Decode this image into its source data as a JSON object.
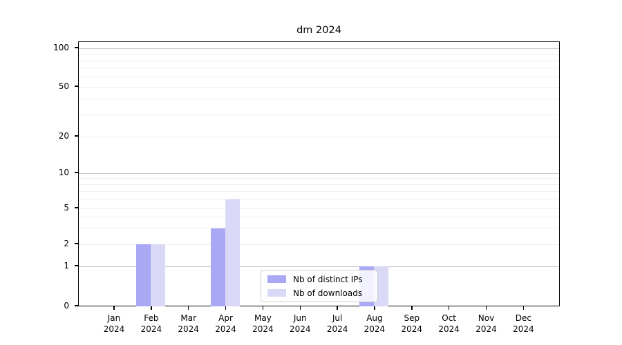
{
  "title": "dm 2024",
  "chart_data": {
    "type": "bar",
    "title": "dm 2024",
    "year_label": "2024",
    "categories": [
      "Jan",
      "Feb",
      "Mar",
      "Apr",
      "May",
      "Jun",
      "Jul",
      "Aug",
      "Sep",
      "Oct",
      "Nov",
      "Dec"
    ],
    "series": [
      {
        "name": "Nb of distinct IPs",
        "color": "#a8a8f5",
        "values": [
          0,
          2,
          0,
          3,
          0,
          0,
          0,
          1,
          0,
          0,
          0,
          0
        ]
      },
      {
        "name": "Nb of downloads",
        "color": "#d9d9f7",
        "values": [
          0,
          2,
          0,
          6,
          0,
          0,
          0,
          1,
          0,
          0,
          0,
          0
        ]
      }
    ],
    "y_axis": {
      "scale": "log-like (0,1,2,5,10,20,50,100)",
      "tick_values": [
        0,
        1,
        2,
        5,
        10,
        20,
        50,
        100
      ],
      "tick_labels": [
        "0",
        "1",
        "2",
        "5",
        "10",
        "20",
        "50",
        "100"
      ],
      "major_gridline_values": [
        1,
        10,
        100
      ],
      "minor_gridline_values": [
        2,
        3,
        4,
        5,
        6,
        7,
        8,
        9,
        20,
        30,
        40,
        50,
        60,
        70,
        80,
        90
      ],
      "range": [
        0,
        100
      ]
    },
    "x_axis": {
      "label_line2": "2024"
    },
    "legend": {
      "position": "bottom-center",
      "entries": [
        "Nb of distinct IPs",
        "Nb of downloads"
      ]
    },
    "colors": {
      "major_grid": "#c6c6c6",
      "minor_grid": "#efefef",
      "axis": "#000000",
      "background": "#ffffff"
    },
    "grid": true
  }
}
